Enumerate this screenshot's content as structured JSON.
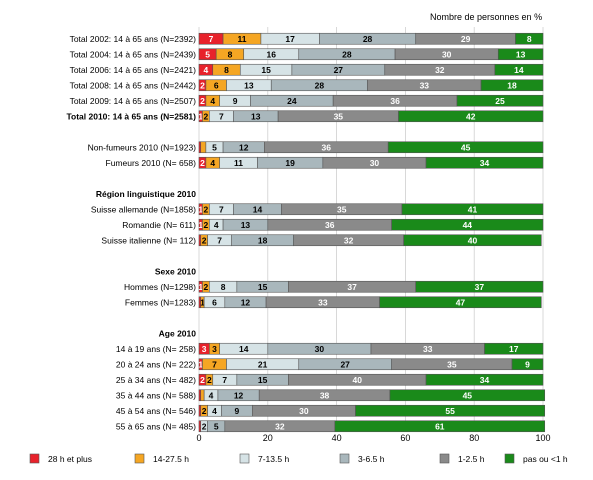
{
  "chart_data": {
    "type": "bar",
    "orientation": "horizontal",
    "stacked": true,
    "unit_label": "Nombre de personnes en %",
    "xlim": [
      0,
      100
    ],
    "xticks": [
      0,
      20,
      40,
      60,
      80,
      100
    ],
    "grid": true,
    "legend_position": "bottom",
    "series": [
      {
        "name": "28 h et plus",
        "color": "#e8222b"
      },
      {
        "name": "14-27.5 h",
        "color": "#f5a623"
      },
      {
        "name": "7-13.5 h",
        "color": "#d6e3e6"
      },
      {
        "name": "3-6.5 h",
        "color": "#a9b7bc"
      },
      {
        "name": "1-2.5 h",
        "color": "#8a8a8a"
      },
      {
        "name": "pas ou <1 h",
        "color": "#1a8a1a"
      }
    ],
    "rows": [
      {
        "kind": "bar",
        "label": "Total 2002: 14 à 65 ans (N=2392)",
        "values": [
          7,
          11,
          17,
          28,
          29,
          8
        ],
        "labels": [
          "7",
          "11",
          "17",
          "28",
          "29",
          "8"
        ]
      },
      {
        "kind": "bar",
        "label": "Total 2004: 14 à 65 ans (N=2439)",
        "values": [
          5,
          8,
          16,
          28,
          30,
          13
        ],
        "labels": [
          "5",
          "8",
          "16",
          "28",
          "30",
          "13"
        ]
      },
      {
        "kind": "bar",
        "label": "Total 2006: 14 à 65 ans (N=2421)",
        "values": [
          4,
          8,
          15,
          27,
          32,
          14
        ],
        "labels": [
          "4",
          "8",
          "15",
          "27",
          "32",
          "14"
        ]
      },
      {
        "kind": "bar",
        "label": "Total 2008: 14 à 65 ans (N=2442)",
        "values": [
          2,
          6,
          13,
          28,
          33,
          18
        ],
        "labels": [
          "2",
          "6",
          "13",
          "28",
          "33",
          "18"
        ]
      },
      {
        "kind": "bar",
        "label": "Total 2009: 14 à 65 ans (N=2507)",
        "values": [
          2,
          4,
          9,
          24,
          36,
          25
        ],
        "labels": [
          "2",
          "4",
          "9",
          "24",
          "36",
          "25"
        ]
      },
      {
        "kind": "bar",
        "label": "Total 2010: 14 à 65 ans (N=2581)",
        "bold": true,
        "values": [
          1,
          2,
          7,
          13,
          35,
          42
        ],
        "labels": [
          "1",
          "2",
          "7",
          "13",
          "35",
          "42"
        ]
      },
      {
        "kind": "gap"
      },
      {
        "kind": "bar",
        "label": "Non-fumeurs 2010 (N=1923)",
        "values": [
          0.5,
          1.5,
          5,
          12,
          36,
          45
        ],
        "labels": [
          "",
          "",
          "5",
          "12",
          "36",
          "45"
        ]
      },
      {
        "kind": "bar",
        "label": "Fumeurs 2010 (N= 658)",
        "values": [
          2,
          4,
          11,
          19,
          30,
          34
        ],
        "labels": [
          "2",
          "4",
          "11",
          "19",
          "30",
          "34"
        ]
      },
      {
        "kind": "gap"
      },
      {
        "kind": "heading",
        "label": "Région linguistique 2010"
      },
      {
        "kind": "bar",
        "label": "Suisse allemande (N=1858)",
        "values": [
          1,
          2,
          7,
          14,
          35,
          41
        ],
        "labels": [
          "1",
          "2",
          "7",
          "14",
          "35",
          "41"
        ]
      },
      {
        "kind": "bar",
        "label": "Romandie (N= 611)",
        "values": [
          1,
          2,
          4,
          13,
          36,
          44
        ],
        "labels": [
          "1",
          "2",
          "4",
          "13",
          "36",
          "44"
        ]
      },
      {
        "kind": "bar",
        "label": "Suisse italienne (N= 112)",
        "values": [
          0.5,
          2,
          7,
          18,
          32,
          40
        ],
        "labels": [
          "",
          "2",
          "7",
          "18",
          "32",
          "40"
        ]
      },
      {
        "kind": "gap"
      },
      {
        "kind": "heading",
        "label": "Sexe 2010"
      },
      {
        "kind": "bar",
        "label": "Hommes (N=1298)",
        "values": [
          1,
          2,
          8,
          15,
          37,
          37
        ],
        "labels": [
          "1",
          "2",
          "8",
          "15",
          "37",
          "37"
        ]
      },
      {
        "kind": "bar",
        "label": "Femmes (N=1283)",
        "values": [
          0.5,
          1,
          6,
          12,
          33,
          47
        ],
        "labels": [
          "",
          "1",
          "6",
          "12",
          "33",
          "47"
        ]
      },
      {
        "kind": "gap"
      },
      {
        "kind": "heading",
        "label": "Age 2010"
      },
      {
        "kind": "bar",
        "label": "14 à 19 ans (N= 258)",
        "values": [
          3,
          3,
          14,
          30,
          33,
          17
        ],
        "labels": [
          "3",
          "3",
          "14",
          "30",
          "33",
          "17"
        ]
      },
      {
        "kind": "bar",
        "label": "20 à 24 ans (N= 222)",
        "values": [
          1,
          7,
          21,
          27,
          35,
          9
        ],
        "labels": [
          "1",
          "7",
          "21",
          "27",
          "35",
          "9"
        ]
      },
      {
        "kind": "bar",
        "label": "25 à 34 ans (N= 482)",
        "values": [
          2,
          2,
          7,
          15,
          40,
          34
        ],
        "labels": [
          "2",
          "2",
          "7",
          "15",
          "40",
          "34"
        ]
      },
      {
        "kind": "bar",
        "label": "35 à 44 ans (N= 588)",
        "values": [
          0.5,
          1,
          4,
          12,
          38,
          45
        ],
        "labels": [
          "",
          "",
          "4",
          "12",
          "38",
          "45"
        ]
      },
      {
        "kind": "bar",
        "label": "45 à 54 ans (N= 546)",
        "values": [
          0.5,
          2,
          4,
          9,
          30,
          55
        ],
        "labels": [
          "",
          "2",
          "4",
          "9",
          "30",
          "55"
        ]
      },
      {
        "kind": "bar",
        "label": "55 à 65 ans (N= 485)",
        "values": [
          0.5,
          2,
          5,
          32,
          61
        ],
        "labels": [
          "",
          "2",
          "5",
          "32",
          "61"
        ],
        "series_order": [
          0,
          2,
          3,
          4,
          5
        ]
      }
    ]
  }
}
